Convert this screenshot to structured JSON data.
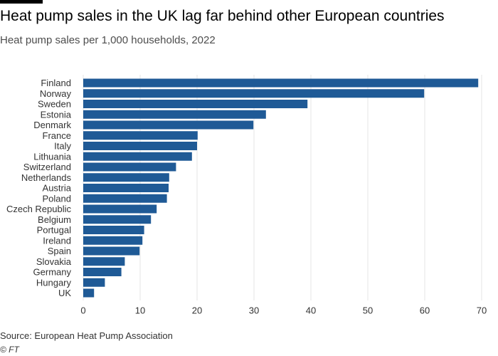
{
  "title": "Heat pump sales in the UK lag far behind other European countries",
  "subtitle": "Heat pump sales per 1,000 households, 2022",
  "source": "Source: European Heat Pump Association",
  "credit": "© FT",
  "colors": {
    "bar": "#1f5a96",
    "grid": "#e6e6e6",
    "text": "#333333"
  },
  "chart_data": {
    "type": "bar",
    "orientation": "horizontal",
    "title": "Heat pump sales in the UK lag far behind other European countries",
    "subtitle": "Heat pump sales per 1,000 households, 2022",
    "xlabel": "",
    "ylabel": "",
    "xlim": [
      0,
      70
    ],
    "xticks": [
      0,
      10,
      20,
      30,
      40,
      50,
      60,
      70
    ],
    "grid": true,
    "categories": [
      "Finland",
      "Norway",
      "Sweden",
      "Estonia",
      "Denmark",
      "France",
      "Italy",
      "Lithuania",
      "Switzerland",
      "Netherlands",
      "Austria",
      "Poland",
      "Czech Republic",
      "Belgium",
      "Portugal",
      "Ireland",
      "Spain",
      "Slovakia",
      "Germany",
      "Hungary",
      "UK"
    ],
    "values": [
      69.4,
      59.9,
      39.4,
      32.1,
      29.9,
      20.1,
      20.0,
      19.1,
      16.3,
      15.1,
      15.0,
      14.7,
      12.9,
      11.9,
      10.7,
      10.4,
      9.9,
      7.3,
      6.7,
      3.8,
      1.9
    ]
  }
}
